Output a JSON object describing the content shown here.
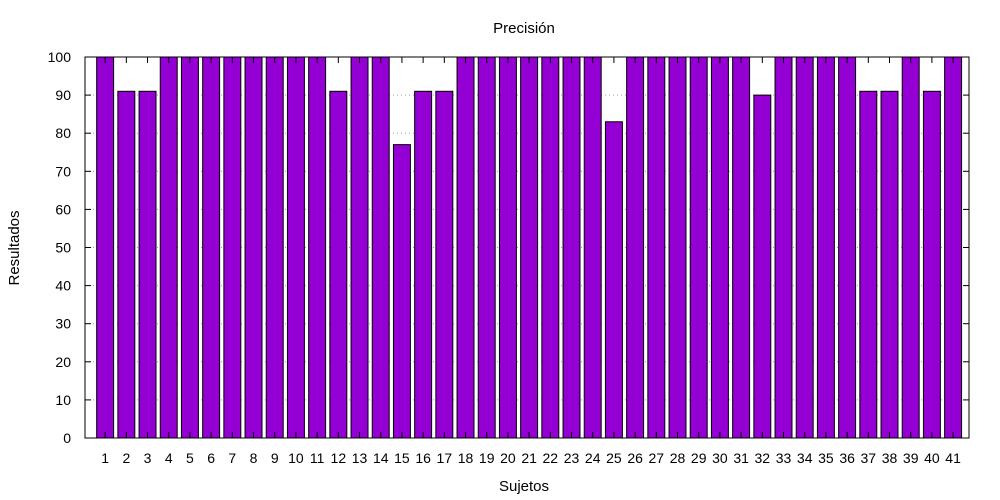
{
  "chart_data": {
    "type": "bar",
    "title": "Precisión",
    "xlabel": "Sujetos",
    "ylabel": "Resultados",
    "categories": [
      "1",
      "2",
      "3",
      "4",
      "5",
      "6",
      "7",
      "8",
      "9",
      "10",
      "11",
      "12",
      "13",
      "14",
      "15",
      "16",
      "17",
      "18",
      "19",
      "20",
      "21",
      "22",
      "23",
      "24",
      "25",
      "26",
      "27",
      "28",
      "29",
      "30",
      "31",
      "32",
      "33",
      "34",
      "35",
      "36",
      "37",
      "38",
      "39",
      "40",
      "41"
    ],
    "values": [
      100,
      91,
      91,
      100,
      100,
      100,
      100,
      100,
      100,
      100,
      100,
      91,
      100,
      100,
      77,
      91,
      91,
      100,
      100,
      100,
      100,
      100,
      100,
      100,
      83,
      100,
      100,
      100,
      100,
      100,
      100,
      90,
      100,
      100,
      100,
      100,
      91,
      91,
      100,
      91,
      100
    ],
    "ylim": [
      0,
      100
    ],
    "yticks": [
      "0",
      "10",
      "20",
      "30",
      "40",
      "50",
      "60",
      "70",
      "80",
      "90",
      "100"
    ],
    "grid": true,
    "legend": "none",
    "bar_color": "#9400D3"
  }
}
